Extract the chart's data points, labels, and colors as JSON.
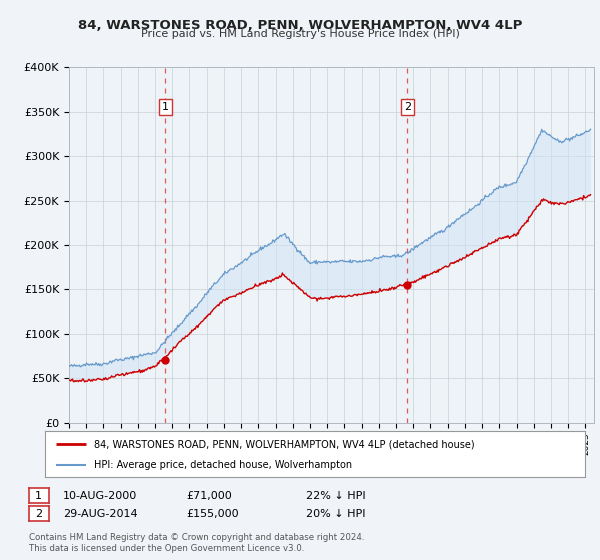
{
  "title": "84, WARSTONES ROAD, PENN, WOLVERHAMPTON, WV4 4LP",
  "subtitle": "Price paid vs. HM Land Registry's House Price Index (HPI)",
  "ylim": [
    0,
    400000
  ],
  "xlim": [
    1995.0,
    2025.5
  ],
  "yticks": [
    0,
    50000,
    100000,
    150000,
    200000,
    250000,
    300000,
    350000,
    400000
  ],
  "ytick_labels": [
    "£0",
    "£50K",
    "£100K",
    "£150K",
    "£200K",
    "£250K",
    "£300K",
    "£350K",
    "£400K"
  ],
  "xticks": [
    1995,
    1996,
    1997,
    1998,
    1999,
    2000,
    2001,
    2002,
    2003,
    2004,
    2005,
    2006,
    2007,
    2008,
    2009,
    2010,
    2011,
    2012,
    2013,
    2014,
    2015,
    2016,
    2017,
    2018,
    2019,
    2020,
    2021,
    2022,
    2023,
    2024,
    2025
  ],
  "red_line_color": "#cc0000",
  "blue_line_color": "#6699cc",
  "fill_color": "#d0e4f7",
  "fill_alpha": 0.5,
  "marker_color": "#cc0000",
  "vline1_x": 2000.6,
  "vline2_x": 2014.66,
  "ann1_x": 2000.6,
  "ann1_y": 71000,
  "ann2_x": 2014.66,
  "ann2_y": 155000,
  "legend_text1": "84, WARSTONES ROAD, PENN, WOLVERHAMPTON, WV4 4LP (detached house)",
  "legend_text2": "HPI: Average price, detached house, Wolverhampton",
  "note1_date": "10-AUG-2000",
  "note1_price": "£71,000",
  "note1_hpi": "22% ↓ HPI",
  "note2_date": "29-AUG-2014",
  "note2_price": "£155,000",
  "note2_hpi": "20% ↓ HPI",
  "footer": "Contains HM Land Registry data © Crown copyright and database right 2024.\nThis data is licensed under the Open Government Licence v3.0.",
  "bg_color": "#f0f4f8",
  "plot_bg_color": "#eef3f8",
  "grid_color": "#c8d0d8"
}
